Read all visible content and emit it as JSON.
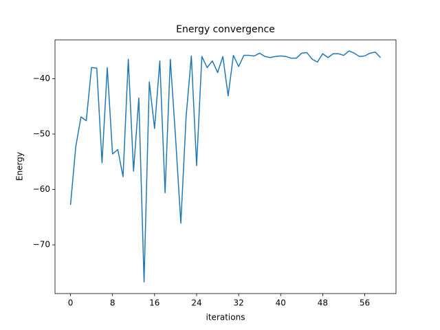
{
  "chart_data": {
    "type": "line",
    "title": "Energy convergence",
    "x_label": "iterations",
    "y_label": "Energy",
    "x": [
      0,
      1,
      2,
      3,
      4,
      5,
      6,
      7,
      8,
      9,
      10,
      11,
      12,
      13,
      14,
      15,
      16,
      17,
      18,
      19,
      20,
      21,
      22,
      23,
      24,
      25,
      26,
      27,
      28,
      29,
      30,
      31,
      32,
      33,
      34,
      35,
      36,
      37,
      38,
      39,
      40,
      41,
      42,
      43,
      44,
      45,
      46,
      47,
      48,
      49,
      50,
      51,
      52,
      53,
      54,
      55,
      56,
      57,
      58,
      59
    ],
    "values": [
      -62.8,
      -52.3,
      -46.9,
      -47.6,
      -38.0,
      -38.1,
      -55.2,
      -38.0,
      -53.6,
      -52.8,
      -57.7,
      -36.5,
      -56.7,
      -43.5,
      -76.7,
      -40.6,
      -49.0,
      -36.8,
      -60.6,
      -36.5,
      -50.7,
      -66.1,
      -46.9,
      -35.9,
      -55.7,
      -36.0,
      -38.0,
      -36.8,
      -38.9,
      -36.0,
      -43.1,
      -35.8,
      -37.8,
      -35.8,
      -35.8,
      -35.9,
      -35.4,
      -36.0,
      -36.2,
      -36.0,
      -35.9,
      -36.0,
      -36.3,
      -36.3,
      -35.4,
      -35.3,
      -36.5,
      -37.0,
      -35.5,
      -36.2,
      -35.5,
      -35.5,
      -35.8,
      -35.0,
      -35.4,
      -36.0,
      -35.9,
      -35.4,
      -35.2,
      -36.2
    ],
    "color": "#1f77b4",
    "xlim": [
      -2.95,
      61.95
    ],
    "xticks": [
      0,
      8,
      16,
      24,
      32,
      40,
      48,
      56
    ],
    "ylim": [
      -78.8,
      -33.0
    ],
    "yticks": [
      {
        "value": -70,
        "label": "−70"
      },
      {
        "value": -60,
        "label": "−60"
      },
      {
        "value": -50,
        "label": "−50"
      },
      {
        "value": -40,
        "label": "−40"
      }
    ],
    "grid": false
  }
}
